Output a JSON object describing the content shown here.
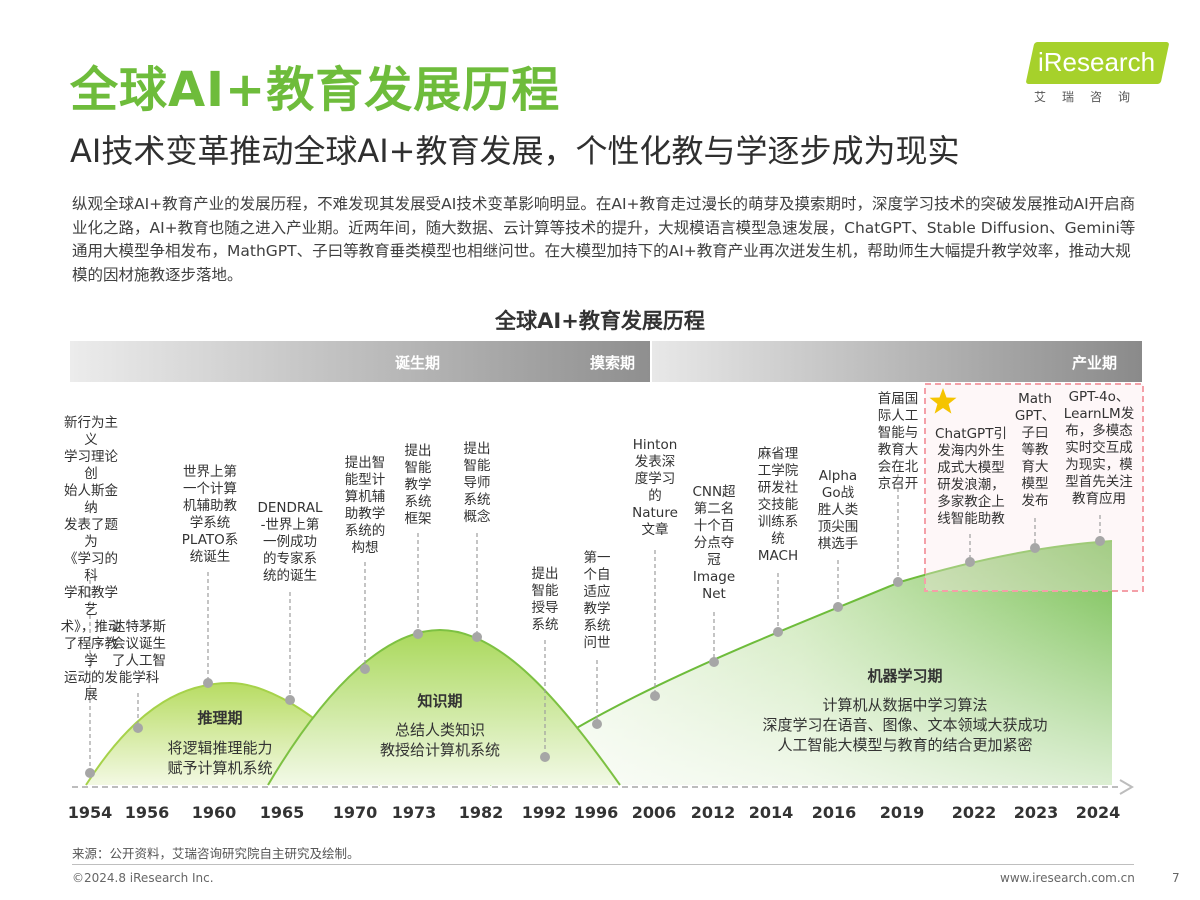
{
  "header": {
    "title": "全球AI+教育发展历程",
    "subtitle": "AI技术变革推动全球AI+教育发展，个性化教与学逐步成为现实",
    "intro": "纵观全球AI+教育产业的发展历程，不难发现其发展受AI技术变革影响明显。在AI+教育走过漫长的萌芽及摸索期时，深度学习技术的突破发展推动AI开启商业化之路，AI+教育也随之进入产业期。近两年间，随大数据、云计算等技术的提升，大规模语言模型急速发展，ChatGPT、Stable Diffusion、Gemini等通用大模型争相发布，MathGPT、子曰等教育垂类模型也相继问世。在大模型加持下的AI+教育产业再次迸发生机，帮助师生大幅提升教学效率，推动大规模的因材施教逐步落地。"
  },
  "logo": {
    "text": "iResearch",
    "subtext": "艾瑞咨询"
  },
  "diagram": {
    "title": "全球AI+教育发展历程",
    "phases": [
      "诞生期",
      "摸索期",
      "产业期"
    ],
    "periods": [
      {
        "title": "推理期",
        "desc": [
          "将逻辑推理能力",
          "赋予计算机系统"
        ]
      },
      {
        "title": "知识期",
        "desc": [
          "总结人类知识",
          "教授给计算机系统"
        ]
      },
      {
        "title": "机器学习期",
        "desc": [
          "计算机从数据中学习算法",
          "深度学习在语音、图像、文本领域大获成功",
          "人工智能大模型与教育的结合更加紧密"
        ]
      }
    ],
    "years": [
      "1954",
      "1956",
      "1960",
      "1965",
      "1970",
      "1973",
      "1982",
      "1992",
      "1996",
      "2006",
      "2012",
      "2014",
      "2016",
      "2019",
      "2022",
      "2023",
      "2024"
    ],
    "events": [
      {
        "year": "1954",
        "lines": [
          "新行为主义",
          "学习理论创",
          "始人斯金纳",
          "发表了题为",
          "《学习的科",
          "学和教学艺",
          "术》，推动",
          "了程序教学",
          "运动的发展"
        ]
      },
      {
        "year": "1956",
        "lines": [
          "达特茅斯",
          "会议诞生",
          "了人工智",
          "能学科"
        ]
      },
      {
        "year": "1960",
        "lines": [
          "世界上第",
          "一个计算",
          "机辅助教",
          "学系统",
          "PLATO系",
          "统诞生"
        ]
      },
      {
        "year": "1965",
        "lines": [
          "DENDRAL",
          "-世界上第",
          "一例成功",
          "的专家系",
          "统的诞生"
        ]
      },
      {
        "year": "1970",
        "lines": [
          "提出智",
          "能型计",
          "算机辅",
          "助教学",
          "系统的",
          "构想"
        ]
      },
      {
        "year": "1973",
        "lines": [
          "提出",
          "智能",
          "教学",
          "系统",
          "框架"
        ]
      },
      {
        "year": "1982",
        "lines": [
          "提出",
          "智能",
          "导师",
          "系统",
          "概念"
        ]
      },
      {
        "year": "1992",
        "lines": [
          "提出",
          "智能",
          "授导",
          "系统"
        ]
      },
      {
        "year": "1996",
        "lines": [
          "第一",
          "个自",
          "适应",
          "教学",
          "系统",
          "问世"
        ]
      },
      {
        "year": "2006",
        "lines": [
          "Hinton",
          "发表深",
          "度学习",
          "的",
          "Nature",
          "文章"
        ]
      },
      {
        "year": "2012",
        "lines": [
          "CNN超",
          "第二名",
          "十个百",
          "分点夺",
          "冠",
          "Image",
          "Net"
        ]
      },
      {
        "year": "2014",
        "lines": [
          "麻省理",
          "工学院",
          "研发社",
          "交技能",
          "训练系",
          "统",
          "MACH"
        ]
      },
      {
        "year": "2016",
        "lines": [
          "Alpha",
          "Go战",
          "胜人类",
          "顶尖围",
          "棋选手"
        ]
      },
      {
        "year": "2019",
        "lines": [
          "首届国",
          "际人工",
          "智能与",
          "教育大",
          "会在北",
          "京召开"
        ]
      },
      {
        "year": "2022",
        "lines": [
          "ChatGPT引",
          "发海内外生",
          "成式大模型",
          "研发浪潮，",
          "多家教企上",
          "线智能助教"
        ]
      },
      {
        "year": "2023",
        "lines": [
          "Math",
          "GPT、",
          "子曰",
          "等教",
          "育大",
          "模型",
          "发布"
        ]
      },
      {
        "year": "2024",
        "lines": [
          "GPT-4o、",
          "LearnLM发",
          "布，多模态",
          "实时交互成",
          "为现实，模",
          "型首先关注",
          "教育应用"
        ]
      }
    ]
  },
  "footer": {
    "source": "来源：公开资料，艾瑞咨询研究院自主研究及绘制。",
    "copyright": "©2024.8 iResearch Inc.",
    "website": "www.iresearch.com.cn",
    "page": "7"
  },
  "colors": {
    "accent": "#6ebc3b",
    "light_green": "#c6e38a",
    "gray_bar": "#b8b8b8",
    "highlight_border": "#f4a0a8",
    "star": "#f5c400"
  }
}
